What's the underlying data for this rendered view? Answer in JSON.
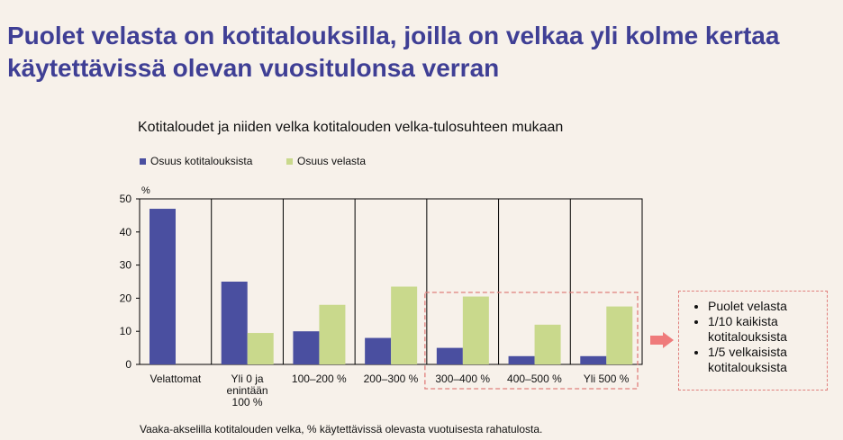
{
  "slide_title": "Puolet velasta on kotitalouksilla, joilla on velkaa yli kolme kertaa käytettävissä olevan vuositulonsa verran",
  "chart_data": {
    "type": "bar",
    "title": "Kotitaloudet ja niiden velka kotitalouden velka-tulosuhteen mukaan",
    "ylabel": "%",
    "ylim": [
      0,
      50
    ],
    "yticks": [
      0,
      10,
      20,
      30,
      40,
      50
    ],
    "categories": [
      "Velattomat",
      "Yli 0 ja enintään 100 %",
      "100–200 %",
      "200–300 %",
      "300–400 %",
      "400–500 %",
      "Yli 500 %"
    ],
    "category_label_lines": [
      [
        "Velattomat"
      ],
      [
        "Yli 0 ja",
        "enintään",
        "100 %"
      ],
      [
        "100–200 %"
      ],
      [
        "200–300 %"
      ],
      [
        "300–400 %"
      ],
      [
        "400–500 %"
      ],
      [
        "Yli 500 %"
      ]
    ],
    "series": [
      {
        "name": "Osuus kotitalouksista",
        "color": "#4a4fa0",
        "values": [
          47,
          25,
          10,
          8,
          5,
          2.5,
          2.5
        ]
      },
      {
        "name": "Osuus velasta",
        "color": "#c9d98c",
        "values": [
          0,
          9.5,
          18,
          23.5,
          20.5,
          12,
          17.5
        ]
      }
    ],
    "highlight_categories": [
      "300–400 %",
      "400–500 %",
      "Yli 500 %"
    ],
    "note": "Vaaka-akselilla kotitalouden velka, % käytettävissä olevasta vuotuisesta rahatulosta."
  },
  "callout": {
    "items": [
      "Puolet velasta",
      "1/10 kaikista kotitalouksista",
      "1/5 velkaisista kotitalouksista"
    ]
  },
  "colors": {
    "title": "#3f3f95",
    "highlight_border": "#e07f7c",
    "arrow": "#ef7b7b"
  }
}
